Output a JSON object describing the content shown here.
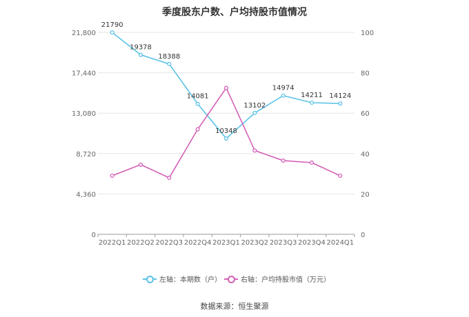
{
  "title": "季度股东户数、户均持股市值情况",
  "source": "数据来源：恒生聚源",
  "chart_data": {
    "type": "line",
    "categories": [
      "2022Q1",
      "2022Q2",
      "2022Q3",
      "2022Q4",
      "2023Q1",
      "2023Q2",
      "2023Q3",
      "2023Q4",
      "2024Q1"
    ],
    "left_axis": {
      "min": 0,
      "max": 21800,
      "ticks": [
        "0",
        "4,360",
        "8,720",
        "13,080",
        "17,440",
        "21,800"
      ]
    },
    "right_axis": {
      "min": 0,
      "max": 100,
      "ticks": [
        "0",
        "20",
        "40",
        "60",
        "80",
        "100"
      ]
    },
    "grid": true,
    "legend_position": "bottom",
    "series": [
      {
        "name": "左轴：本期数（户）",
        "axis": "left",
        "color": "#5bc2e7",
        "values": [
          21790,
          19378,
          18388,
          14081,
          10348,
          13102,
          14974,
          14211,
          14124
        ],
        "labels": [
          "21790",
          "19378",
          "18388",
          "14081",
          "10348",
          "13102",
          "14974",
          "14211",
          "14124"
        ]
      },
      {
        "name": "右轴：户均持股市值（万元）",
        "axis": "right",
        "color": "#d45fb5",
        "values": [
          29.0,
          34.5,
          28.0,
          52.0,
          72.5,
          41.5,
          36.5,
          35.5,
          29.0
        ]
      }
    ]
  }
}
